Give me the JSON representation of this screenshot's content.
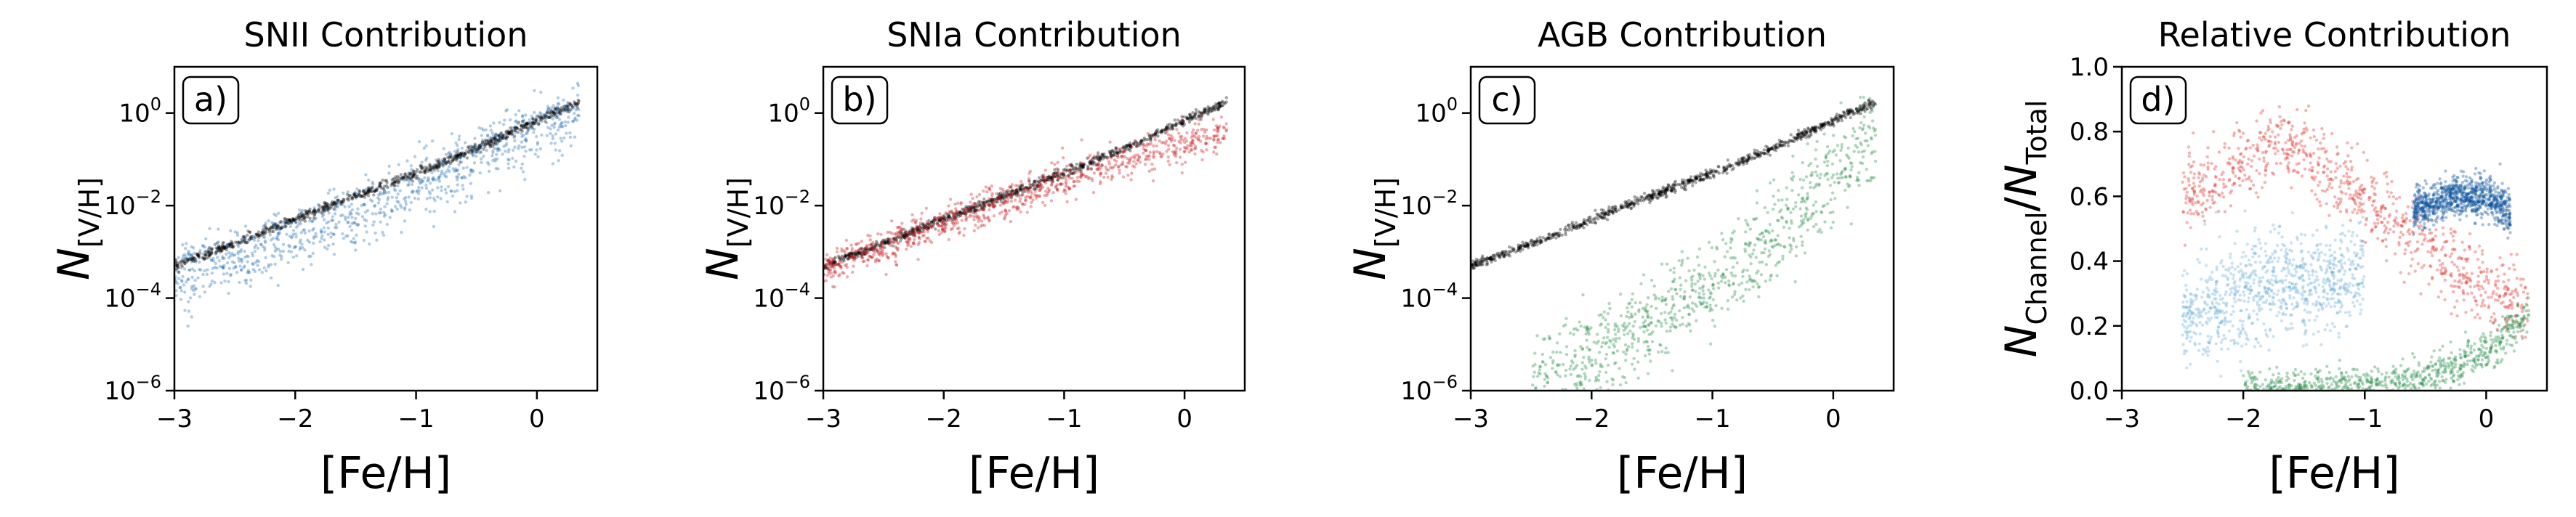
{
  "chart_data": [
    {
      "type": "scatter",
      "title": "SNII Contribution",
      "panel_label": "a)",
      "xlabel": "[Fe/H]",
      "ylabel_main": "N",
      "ylabel_sub": "[V/H]",
      "xlim": [
        -3,
        0.5
      ],
      "ylim": [
        1e-06,
        10
      ],
      "yscale": "log",
      "xticks": [
        -3,
        -2,
        -1,
        0
      ],
      "xtick_labels": [
        "−3",
        "−2",
        "−1",
        "0"
      ],
      "yticks": [
        1e-06,
        0.0001,
        0.01,
        1
      ],
      "ytick_labels": [
        {
          "base": "10",
          "exp": "−6"
        },
        {
          "base": "10",
          "exp": "−4"
        },
        {
          "base": "10",
          "exp": "−2"
        },
        {
          "base": "10",
          "exp": "0"
        }
      ],
      "series": [
        {
          "color": "#000000",
          "spread": 0.05,
          "x": [
            -3.0,
            -2.5,
            -2.0,
            -1.5,
            -1.0,
            -0.5,
            0.0,
            0.35
          ],
          "y": [
            0.0005,
            0.0015,
            0.005,
            0.016,
            0.05,
            0.17,
            0.7,
            1.7
          ]
        },
        {
          "color": "#2171b5",
          "spread": 0.35,
          "x": [
            -3.0,
            -2.5,
            -2.0,
            -1.5,
            -1.0,
            -0.5,
            0.0,
            0.35
          ],
          "y": [
            0.0003,
            0.0007,
            0.0018,
            0.006,
            0.025,
            0.1,
            0.4,
            0.8
          ]
        }
      ]
    },
    {
      "type": "scatter",
      "title": "SNIa Contribution",
      "panel_label": "b)",
      "xlabel": "[Fe/H]",
      "ylabel_main": "N",
      "ylabel_sub": "[V/H]",
      "xlim": [
        -3,
        0.5
      ],
      "ylim": [
        1e-06,
        10
      ],
      "yscale": "log",
      "xticks": [
        -3,
        -2,
        -1,
        0
      ],
      "xtick_labels": [
        "−3",
        "−2",
        "−1",
        "0"
      ],
      "yticks": [
        1e-06,
        0.0001,
        0.01,
        1
      ],
      "ytick_labels": [
        {
          "base": "10",
          "exp": "−6"
        },
        {
          "base": "10",
          "exp": "−4"
        },
        {
          "base": "10",
          "exp": "−2"
        },
        {
          "base": "10",
          "exp": "0"
        }
      ],
      "series": [
        {
          "color": "#000000",
          "spread": 0.05,
          "x": [
            -3.0,
            -2.5,
            -2.0,
            -1.5,
            -1.0,
            -0.5,
            0.0,
            0.35
          ],
          "y": [
            0.0005,
            0.0015,
            0.005,
            0.016,
            0.05,
            0.17,
            0.7,
            1.7
          ]
        },
        {
          "color": "#cb181d",
          "spread": 0.2,
          "x": [
            -3.0,
            -2.5,
            -2.0,
            -1.5,
            -1.0,
            -0.5,
            0.0,
            0.35
          ],
          "y": [
            0.0004,
            0.0013,
            0.004,
            0.012,
            0.035,
            0.09,
            0.22,
            0.4
          ]
        }
      ]
    },
    {
      "type": "scatter",
      "title": "AGB Contribution",
      "panel_label": "c)",
      "xlabel": "[Fe/H]",
      "ylabel_main": "N",
      "ylabel_sub": "[V/H]",
      "xlim": [
        -3,
        0.5
      ],
      "ylim": [
        1e-06,
        10
      ],
      "yscale": "log",
      "xticks": [
        -3,
        -2,
        -1,
        0
      ],
      "xtick_labels": [
        "−3",
        "−2",
        "−1",
        "0"
      ],
      "yticks": [
        1e-06,
        0.0001,
        0.01,
        1
      ],
      "ytick_labels": [
        {
          "base": "10",
          "exp": "−6"
        },
        {
          "base": "10",
          "exp": "−4"
        },
        {
          "base": "10",
          "exp": "−2"
        },
        {
          "base": "10",
          "exp": "0"
        }
      ],
      "series": [
        {
          "color": "#000000",
          "spread": 0.05,
          "x": [
            -3.0,
            -2.5,
            -2.0,
            -1.5,
            -1.0,
            -0.5,
            0.0,
            0.35
          ],
          "y": [
            0.0005,
            0.0015,
            0.005,
            0.016,
            0.05,
            0.17,
            0.7,
            1.7
          ]
        },
        {
          "color": "#238b45",
          "spread": 0.5,
          "x": [
            -2.5,
            -2.0,
            -1.5,
            -1.0,
            -0.5,
            0.0,
            0.35
          ],
          "y": [
            1e-06,
            6e-06,
            3e-05,
            0.0002,
            0.002,
            0.05,
            0.35
          ]
        }
      ]
    },
    {
      "type": "scatter",
      "title": "Relative Contribution",
      "panel_label": "d)",
      "xlabel": "[Fe/H]",
      "ylabel_main": "N",
      "ylabel_sub": "Channel",
      "ylabel_main2": "N",
      "ylabel_sub2": "Total",
      "xlim": [
        -3,
        0.5
      ],
      "ylim": [
        0,
        1
      ],
      "yscale": "linear",
      "xticks": [
        -3,
        -2,
        -1,
        0
      ],
      "xtick_labels": [
        "−3",
        "−2",
        "−1",
        "0"
      ],
      "yticks": [
        0,
        0.2,
        0.4,
        0.6,
        0.8,
        1.0
      ],
      "ytick_labels": [
        "0.0",
        "0.2",
        "0.4",
        "0.6",
        "0.8",
        "1.0"
      ],
      "series": [
        {
          "color": "#de2d26",
          "spread": 0.06,
          "x": [
            -2.5,
            -2.0,
            -1.7,
            -1.5,
            -1.0,
            -0.5,
            0.0,
            0.35
          ],
          "y": [
            0.6,
            0.7,
            0.78,
            0.72,
            0.6,
            0.45,
            0.3,
            0.25
          ]
        },
        {
          "color": "#6baed6",
          "spread": 0.08,
          "x": [
            -2.5,
            -2.0,
            -1.5,
            -1.0
          ],
          "y": [
            0.22,
            0.3,
            0.33,
            0.38
          ]
        },
        {
          "color": "#08519c",
          "spread": 0.03,
          "x": [
            -0.6,
            -0.3,
            0.0,
            0.2
          ],
          "y": [
            0.55,
            0.6,
            0.6,
            0.55
          ]
        },
        {
          "color": "#238b45",
          "spread": 0.03,
          "x": [
            -2.0,
            -1.0,
            -0.5,
            0.0,
            0.35
          ],
          "y": [
            0.0,
            0.01,
            0.04,
            0.12,
            0.23
          ]
        }
      ]
    }
  ]
}
